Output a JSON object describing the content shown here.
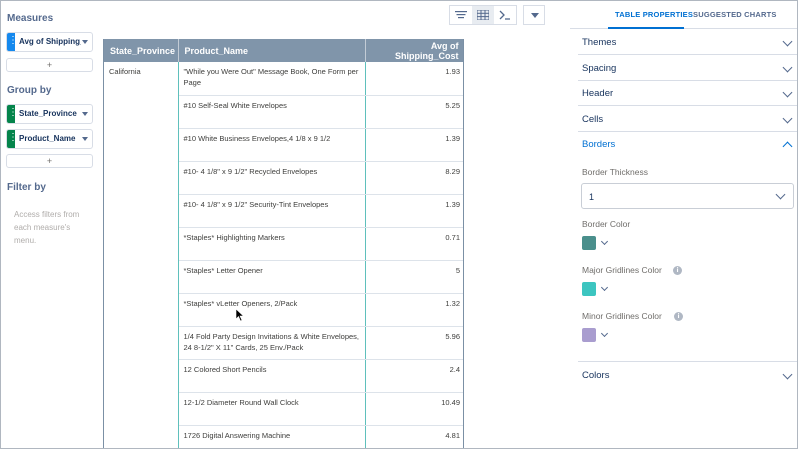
{
  "left_panel": {
    "measures_title": "Measures",
    "measures": [
      {
        "label": "Avg of Shipping_Cost",
        "color": "#1589ee"
      }
    ],
    "add_label": "+",
    "groupby_title": "Group by",
    "groups": [
      {
        "label": "State_Province",
        "color": "#04844b"
      },
      {
        "label": "Product_Name",
        "color": "#04844b"
      }
    ],
    "filter_title": "Filter by",
    "filter_hint": "Access filters from each measure's menu."
  },
  "toolbar": {
    "icons": [
      "lines-icon",
      "table-icon",
      "formula-icon",
      "chevron-down-icon"
    ]
  },
  "table": {
    "columns": [
      "State_Province",
      "Product_Name",
      "Avg of Shipping_Cost"
    ],
    "rows": [
      [
        "California",
        "\"While you Were Out\" Message Book, One Form per Page",
        "1.93"
      ],
      [
        "",
        "#10 Self-Seal White Envelopes",
        "5.25"
      ],
      [
        "",
        "#10 White Business Envelopes,4 1/8 x 9 1/2",
        "1.39"
      ],
      [
        "",
        "#10- 4 1/8\" x 9 1/2\" Recycled Envelopes",
        "8.29"
      ],
      [
        "",
        "#10- 4 1/8\" x 9 1/2\" Security-Tint Envelopes",
        "1.39"
      ],
      [
        "",
        "*Staples* Highlighting Markers",
        "0.71"
      ],
      [
        "",
        "*Staples* Letter Opener",
        "5"
      ],
      [
        "",
        "*Staples* vLetter Openers, 2/Pack",
        "1.32"
      ],
      [
        "",
        "1/4 Fold Party Design Invitations & White Envelopes, 24 8-1/2\" X 11\" Cards, 25 Env./Pack",
        "5.96"
      ],
      [
        "",
        "12 Colored Short Pencils",
        "2.4"
      ],
      [
        "",
        "12-1/2 Diameter Round Wall Clock",
        "10.49"
      ],
      [
        "",
        "1726 Digital Answering Machine",
        "4.81"
      ]
    ]
  },
  "right_panel": {
    "tabs": [
      "TABLE PROPERTIES",
      "SUGGESTED CHARTS"
    ],
    "sections": {
      "themes": "Themes",
      "spacing": "Spacing",
      "header": "Header",
      "cells": "Cells",
      "borders": "Borders",
      "colors": "Colors"
    },
    "border_thickness_label": "Border Thickness",
    "border_thickness_value": "1",
    "border_color_label": "Border Color",
    "border_color": "#4a8f8c",
    "major_gridlines_label": "Major Gridlines Color",
    "major_gridlines_color": "#3cc5c0",
    "minor_gridlines_label": "Minor Gridlines Color",
    "minor_gridlines_color": "#a99dcf",
    "info_glyph": "i"
  }
}
